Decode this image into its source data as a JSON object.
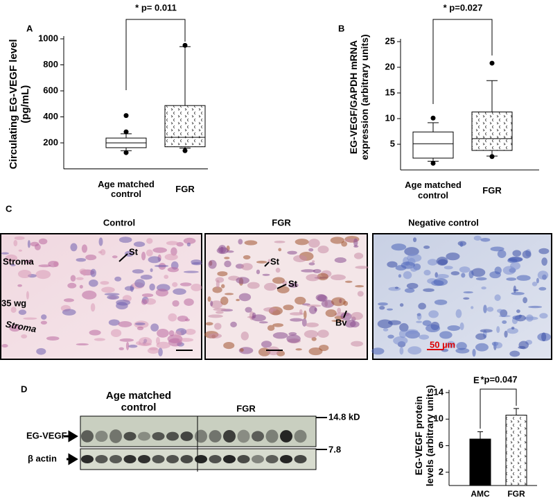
{
  "chart_data": [
    {
      "type": "box",
      "panel": "A",
      "annotation": "* p= 0.011",
      "y_label": "Circulating EG-VEGF level (pg/mL)",
      "categories": [
        "Age matched control",
        "FGR"
      ],
      "fills": [
        "#ffffff",
        "hatch"
      ],
      "boxes": [
        {
          "whisker_low": 140,
          "q1": 163,
          "median": 200,
          "q3": 237,
          "whisker_high": 270,
          "outliers": [
            410,
            285,
            125
          ]
        },
        {
          "whisker_low": 160,
          "q1": 170,
          "median": 243,
          "q3": 487,
          "whisker_high": 940,
          "outliers": [
            950,
            140
          ]
        }
      ],
      "ylim": [
        0,
        1000
      ],
      "yticks": [
        200,
        400,
        600,
        800,
        1000
      ]
    },
    {
      "type": "box",
      "panel": "B",
      "annotation": "* p=0.027",
      "y_label": "EG-VEGF/GAPDH mRNA expression (arbitrary units)",
      "categories": [
        "Age matched control",
        "FGR"
      ],
      "fills": [
        "#ffffff",
        "hatch"
      ],
      "boxes": [
        {
          "whisker_low": 1.7,
          "q1": 2.3,
          "median": 5.1,
          "q3": 7.4,
          "whisker_high": 9.2,
          "outliers": [
            10.1,
            1.3
          ]
        },
        {
          "whisker_low": 2.7,
          "q1": 3.8,
          "median": 6.1,
          "q3": 11.3,
          "whisker_high": 17.4,
          "outliers": [
            20.8,
            2.6
          ]
        }
      ],
      "ylim": [
        0,
        25
      ],
      "yticks": [
        5,
        10,
        15,
        20,
        25
      ]
    },
    {
      "type": "bar",
      "panel": "E",
      "annotation": "*p=0.047",
      "y_label": "EG-VEGF protein levels (arbitrary units)",
      "categories": [
        "AMC",
        "FGR"
      ],
      "values": [
        7.0,
        10.6
      ],
      "errors": [
        1.1,
        1.0
      ],
      "fills": [
        "#000000",
        "hatch"
      ],
      "ylim": [
        0,
        14
      ],
      "yticks": [
        2,
        6,
        10,
        14
      ]
    }
  ],
  "micrographs": {
    "panel": "C",
    "row_label": "35 wg",
    "images": [
      {
        "title": "Control",
        "labels": [
          "Stroma",
          "Stroma",
          "St"
        ]
      },
      {
        "title": "FGR",
        "labels": [
          "St",
          "St",
          "Bv"
        ]
      },
      {
        "title": "Negative control",
        "scale_bar": "50 µm"
      }
    ]
  },
  "western_blot": {
    "panel": "D",
    "groups": [
      "Age matched control",
      "FGR"
    ],
    "markers": [
      "14.8 kD",
      "7.8"
    ],
    "rows": [
      "EG-VEGF",
      "β actin"
    ]
  }
}
